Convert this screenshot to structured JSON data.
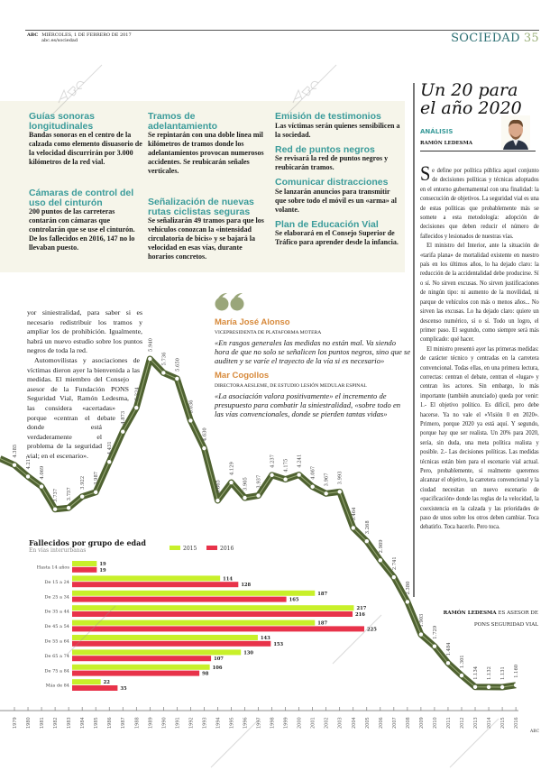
{
  "header": {
    "brand": "ABC",
    "date": "MIÉRCOLES, 1 DE FEBRERO DE 2017",
    "site": "abc.es/sociedad",
    "section": "SOCIEDAD",
    "page": "35"
  },
  "infobox": {
    "columns": [
      [
        {
          "title": "Guías sonoras longitudinales",
          "text": "Bandas sonoras en el centro de la calzada como elemento disuasorio de la velocidad discurrirán por 3.000 kilómetros de la red vial."
        },
        {
          "title": "Cámaras de control del uso del cinturón",
          "text": "200 puntos de las carreteras contarán con cámaras que controlarán que se use el cinturón. De los fallecidos en 2016, 147 no lo llevaban puesto."
        }
      ],
      [
        {
          "title": "Tramos de adelantamiento",
          "text": "Se repintarán con una doble línea mil kilómetros de tramos donde los adelantamientos provocan numerosos accidentes. Se reubicarán señales verticales."
        },
        {
          "title": "Señalización de nuevas rutas ciclistas seguras",
          "text": "Se señalizarán 49 tramos para que los vehículos conozcan la «intensidad circulatoria de bicis» y se bajará la velocidad en esas vías, durante horarios concretos."
        }
      ],
      [
        {
          "title": "Emisión de testimonios",
          "text": "Las víctimas serán quienes sensibilicen a la sociedad."
        },
        {
          "title": "Red de puntos negros",
          "text": "Se revisará la red de puntos negros y reubicarán tramos."
        },
        {
          "title": "Comunicar distracciones",
          "text": "Se lanzarán anuncios para transmitir que sobre todo el móvil es un «arma» al volante."
        },
        {
          "title": "Plan de Educación Vial",
          "text": "Se elaborará en el Consejo Superior de Tráfico para aprender desde la infancia."
        }
      ]
    ]
  },
  "analysis": {
    "title_line1": "Un 20 para",
    "title_line2": "el año 2020",
    "kicker": "ANÁLISIS",
    "author": "RAMÓN LEDESMA",
    "paragraphs": [
      "Se define por política pública aquel conjunto de decisiones políticas y técnicas adoptados en el entorno gubernamental con una finalidad: la consecución de objetivos. La seguridad vial es una de estas políticas que probablemente más se somete a esta metodología: adopción de decisiones que deben reducir el número de fallecidos y lesionados de nuestras vías.",
      "El ministro del Interior, ante la situación de «tarifa plana» de mortalidad existente en nuestro país en los últimos años, lo ha dejado claro: la reducción de la accidentalidad debe producirse. Sí o sí. No sirven excusas. No sirven justificaciones de ningún tipo: ni aumento de la movilidad, ni parque de vehículos con más o menos años... No sirven las excusas. Lo ha dejado claro: quiere un descenso numérico, sí o sí. Todo un logro, el primer paso. El segundo, como siempre será más complicado: qué hacer.",
      "El ministro presentó ayer las primeras medidas: de carácter técnico y centradas en la carretera convencional. Todas ellas, en una primera lectura, correctas: centran el debate, centran el «lugar» y centran los actores. Sin embargo, lo más importante (también anunciado) queda por venir: 1.- El objetivo político. Es difícil, pero debe hacerse. Ya no vale el «Visión 0 en 2020». Primero, porque 2020 ya está aquí. Y segundo, porque hay que ser realista. Un 20% para 2020, sería, sin duda, una meta política realista y posible. 2.- Las decisiones políticas. Las medidas técnicas están bien para el escenario vial actual. Pero, probablemente, si realmente queremos alcanzar el objetivo, la carretera convencional y la ciudad necesitan un nuevo escenario de «pacificación» donde las reglas de la velocidad, la coexistencia en la calzada y las prioridades de paso de unos sobre los otros deben cambiar. Toca debatirlo. Toca hacerlo. Pero toca."
    ],
    "byline_name": "RAMÓN LEDESMA",
    "byline_role_1": "ES ASESOR DE",
    "byline_role_2": "PONS SEGURIDAD VIAL"
  },
  "article": {
    "paragraph1": "yor siniestralidad, para saber si es necesario redistribuir los tramos y ampliar los de prohibición. Igualmente, habrá un nuevo estudio sobre los puntos negros de toda la red.",
    "paragraph2": "Automovilistas y asociaciones de víctimas dieron ayer la bienvenida a las medidas. El miembro del Consejo asesor de la Fundación PONS Seguridad Vial, Ramón Ledesma, las considera «acertadas» porque «centran el debate donde está verdaderamente el problema de la seguridad vial; en el escenario»."
  },
  "quotes": [
    {
      "name": "María José Alonso",
      "role": "VICEPRESIDENTA DE PLATAFORMA MOTERA",
      "text": "«En rasgos generales las medidas no están mal. Va siendo hora de que no solo se señalicen los puntos negros, sino que se auditen y se varíe el trayecto de la vía si es necesario»"
    },
    {
      "name": "Mar Cogollos",
      "role": "DIRECTORA AESLEME, DE ESTUDIO LESIÓN MEDULAR ESPINAL",
      "text": "«La asociación valora positivamente» el incremento de presupuesto para combatir la siniestralidad, «sobre todo en las vías convencionales, donde se pierden tantas vidas»"
    }
  ],
  "colors": {
    "accent_teal": "#3a9b9a",
    "quote_orange": "#d7893a",
    "line": "#4f6231",
    "bar_2015": "#c8f02a",
    "bar_2016": "#e8334a",
    "infobox_bg": "#f6f5ea"
  },
  "watermark": "ABC",
  "credit": "ABC",
  "chart_data": [
    {
      "type": "line",
      "x": [
        1979,
        1980,
        1981,
        1982,
        1983,
        1984,
        1985,
        1986,
        1987,
        1988,
        1989,
        1990,
        1991,
        1992,
        1993,
        1994,
        1995,
        1996,
        1997,
        1998,
        1999,
        2000,
        2001,
        2002,
        2003,
        2004,
        2005,
        2006,
        2007,
        2008,
        2009,
        2010,
        2011,
        2012,
        2013,
        2014,
        2015,
        2016
      ],
      "values": [
        4385,
        4217,
        4069,
        3737,
        3757,
        3922,
        3987,
        4431,
        4873,
        5224,
        5940,
        5736,
        5650,
        5036,
        4630,
        3865,
        4129,
        3905,
        3937,
        4237,
        4175,
        4241,
        4067,
        3967,
        3993,
        3464,
        3268,
        2989,
        2741,
        2380,
        1903,
        1729,
        1484,
        1301,
        1134,
        1132,
        1131,
        1160
      ],
      "labels": [
        "4.385",
        "4.217",
        "4.069",
        "3.737",
        "3.757",
        "3.922",
        "3.987",
        "4.431",
        "4.873",
        "5.224",
        "5.940",
        "5.736",
        "5.650",
        "5.036",
        "4.630",
        "3.865",
        "4.129",
        "3.905",
        "3.937",
        "4.237",
        "4.175",
        "4.241",
        "4.067",
        "3.967",
        "3.993",
        "3.464",
        "3.268",
        "2.989",
        "2.741",
        "2.380",
        "1.903",
        "1.729",
        "1.484",
        "1.301",
        "1.134",
        "1.132",
        "1.131",
        "1.160"
      ],
      "grid": false
    },
    {
      "type": "bar",
      "title": "Fallecidos por grupo de edad",
      "subtitle": "En vías interurbanas",
      "categories": [
        "Hasta 14 años",
        "De 15 a 24",
        "De 25 a 34",
        "De 35 a 44",
        "De 45 a 54",
        "De 55 a 64",
        "De 65 a 74",
        "De 75 a 84",
        "Más de 84"
      ],
      "series": [
        {
          "name": "2015",
          "values": [
            19,
            114,
            187,
            217,
            187,
            143,
            130,
            106,
            22
          ]
        },
        {
          "name": "2016",
          "values": [
            19,
            128,
            165,
            216,
            225,
            153,
            107,
            98,
            35
          ]
        }
      ],
      "orientation": "horizontal",
      "legend": "top"
    }
  ]
}
